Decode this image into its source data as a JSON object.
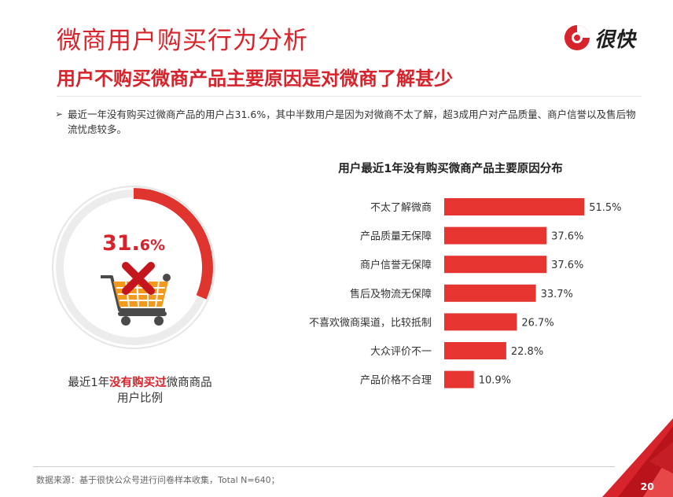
{
  "header": {
    "title": "微商用户购买行为分析",
    "subtitle": "用户不购买微商产品主要原因是对微商了解甚少",
    "logo_text": "很快"
  },
  "bullet": {
    "text": "最近一年没有购买过微商产品的用户占31.6%，其中半数用户是因为对微商不太了解，超3成用户对产品质量、商户信誉以及售后物流忧虑较多。"
  },
  "donut": {
    "value": 31.6,
    "value_int": "31.",
    "value_dec": "6%",
    "caption_prefix": "最近1年",
    "caption_highlight": "没有购买过",
    "caption_suffix": "微商商品",
    "caption_line2": "用户比例",
    "icon": "shopping-cart-with-x-icon"
  },
  "chart_data": {
    "type": "bar",
    "orientation": "horizontal",
    "title": "用户最近1年没有购买微商产品主要原因分布",
    "categories": [
      "不太了解微商",
      "产品质量无保障",
      "商户信誉无保障",
      "售后及物流无保障",
      "不喜欢微商渠道，比较抵制",
      "大众评价不一",
      "产品价格不合理"
    ],
    "values": [
      51.5,
      37.6,
      37.6,
      33.7,
      26.7,
      22.8,
      10.9
    ],
    "labels": [
      "51.5%",
      "37.6%",
      "37.6%",
      "33.7%",
      "26.7%",
      "22.8%",
      "10.9%"
    ],
    "unit": "%",
    "xlim": [
      0,
      100
    ],
    "grid": false,
    "legend": "none"
  },
  "footer": {
    "source": "数据来源：基于很快公众号进行问卷样本收集，Total N=640；",
    "page": "20"
  },
  "colors": {
    "accent": "#d7232b",
    "bar": "#e63530",
    "donut_track": "#e8e8e8",
    "cart_orange": "#f39a1e"
  }
}
